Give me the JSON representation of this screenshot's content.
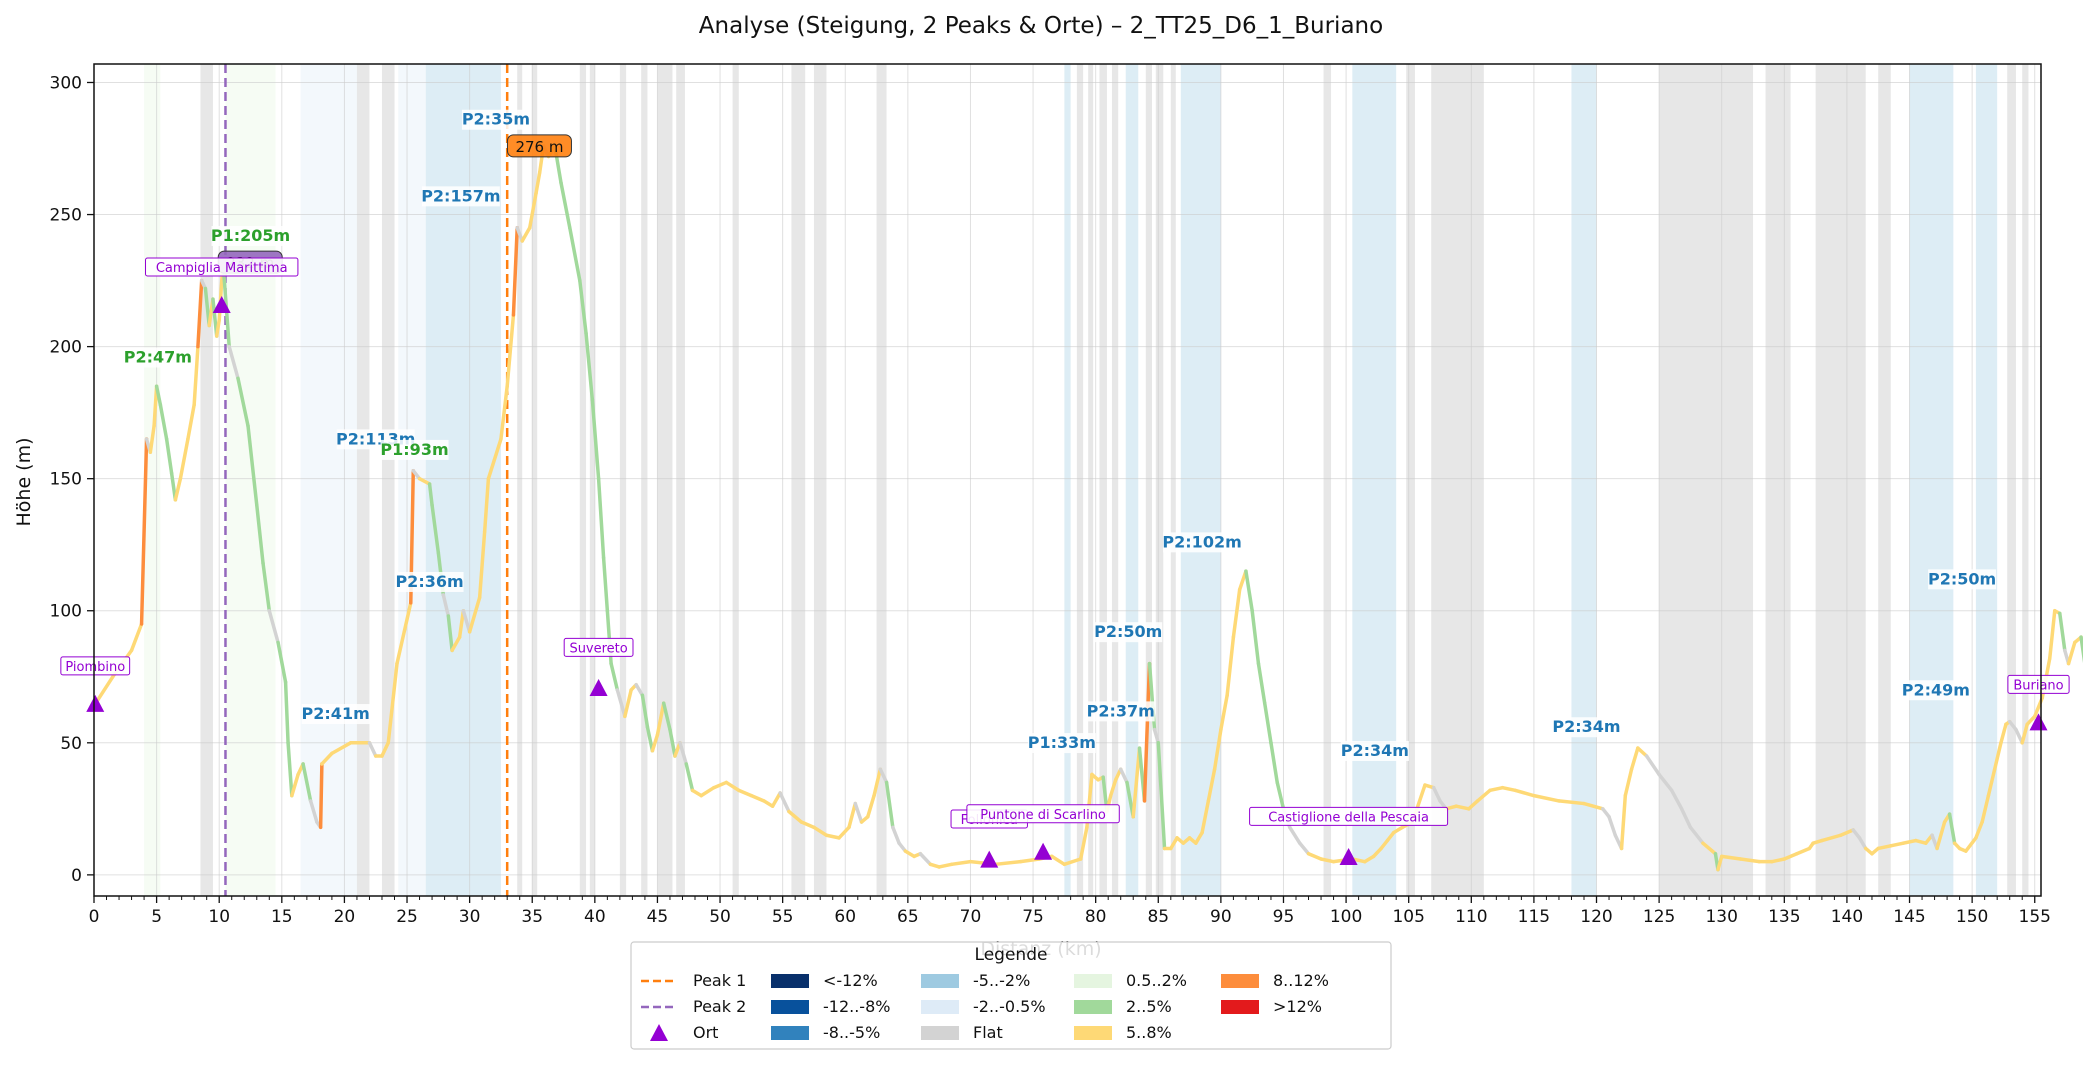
{
  "chart_data": {
    "type": "line",
    "title": "Analyse (Steigung, 2 Peaks & Orte) – 2_TT25_D6_1_Buriano",
    "xlabel": "Distanz (km)",
    "ylabel": "Höhe (m)",
    "xlim": [
      0,
      155.5
    ],
    "ylim": [
      -8,
      307
    ],
    "x_ticks": [
      0,
      5,
      10,
      15,
      20,
      25,
      30,
      35,
      40,
      45,
      50,
      55,
      60,
      65,
      70,
      75,
      80,
      85,
      90,
      95,
      100,
      105,
      110,
      115,
      120,
      125,
      130,
      135,
      140,
      145,
      150,
      155
    ],
    "y_ticks": [
      0,
      50,
      100,
      150,
      200,
      250,
      300
    ],
    "grid": true,
    "legend_position": "bottom-center",
    "colors": {
      "peak1": "#ff7f0e",
      "peak2": "#9467bd",
      "ort": "#9400d3",
      "label_p1": "#2ca02c",
      "label_p2": "#1f77b4",
      "lt_neg12": "#08306b",
      "neg12_neg8": "#08519c",
      "neg8_neg5": "#3182bd",
      "neg5_neg2": "#9ecae1",
      "neg2_neg05": "#deebf7",
      "flat": "#d3d3d3",
      "c05_2": "#e5f5e0",
      "c2_5": "#a1d99b",
      "c5_8": "#fed976",
      "c8_12": "#fd8d3c",
      "gt12": "#e31a1c"
    },
    "profile": [
      [
        0,
        64
      ],
      [
        1.5,
        75
      ],
      [
        3,
        85
      ],
      [
        3.8,
        95
      ],
      [
        4.2,
        165
      ],
      [
        4.5,
        160
      ],
      [
        4.8,
        170
      ],
      [
        5.0,
        185
      ],
      [
        5.3,
        178
      ],
      [
        5.8,
        165
      ],
      [
        6.2,
        152
      ],
      [
        6.5,
        142
      ],
      [
        6.9,
        150
      ],
      [
        7.5,
        165
      ],
      [
        8.0,
        178
      ],
      [
        8.3,
        200
      ],
      [
        8.6,
        225
      ],
      [
        8.9,
        222
      ],
      [
        9.2,
        208
      ],
      [
        9.5,
        218
      ],
      [
        9.8,
        204
      ],
      [
        10.0,
        210
      ],
      [
        10.3,
        232
      ],
      [
        10.8,
        200
      ],
      [
        11.5,
        188
      ],
      [
        12.3,
        170
      ],
      [
        13.0,
        140
      ],
      [
        13.5,
        118
      ],
      [
        14.0,
        100
      ],
      [
        14.7,
        88
      ],
      [
        15.3,
        73
      ],
      [
        15.5,
        50
      ],
      [
        15.8,
        30
      ],
      [
        16.3,
        38
      ],
      [
        16.7,
        42
      ],
      [
        17.3,
        28
      ],
      [
        17.8,
        20
      ],
      [
        18.1,
        18
      ],
      [
        18.2,
        42
      ],
      [
        19.0,
        46
      ],
      [
        20.5,
        50
      ],
      [
        22.0,
        50
      ],
      [
        22.5,
        45
      ],
      [
        23.0,
        45
      ],
      [
        23.5,
        50
      ],
      [
        24.2,
        80
      ],
      [
        25.3,
        103
      ],
      [
        25.5,
        153
      ],
      [
        26.0,
        150
      ],
      [
        26.8,
        148
      ],
      [
        27.0,
        140
      ],
      [
        27.5,
        122
      ],
      [
        27.9,
        106
      ],
      [
        28.3,
        98
      ],
      [
        28.6,
        85
      ],
      [
        29.2,
        90
      ],
      [
        29.5,
        100
      ],
      [
        30.0,
        92
      ],
      [
        30.8,
        105
      ],
      [
        31.2,
        130
      ],
      [
        31.5,
        150
      ],
      [
        32.5,
        165
      ],
      [
        33.0,
        185
      ],
      [
        33.5,
        212
      ],
      [
        33.8,
        245
      ],
      [
        34.2,
        240
      ],
      [
        34.8,
        245
      ],
      [
        35.3,
        258
      ],
      [
        35.6,
        266
      ],
      [
        35.9,
        276
      ],
      [
        36.3,
        272
      ],
      [
        36.8,
        276
      ],
      [
        37.3,
        262
      ],
      [
        38.0,
        245
      ],
      [
        38.8,
        225
      ],
      [
        39.3,
        205
      ],
      [
        39.8,
        180
      ],
      [
        40.3,
        150
      ],
      [
        40.7,
        120
      ],
      [
        41.0,
        100
      ],
      [
        41.3,
        80
      ],
      [
        41.8,
        70
      ],
      [
        42.4,
        60
      ],
      [
        42.9,
        70
      ],
      [
        43.3,
        72
      ],
      [
        43.8,
        68
      ],
      [
        44.2,
        56
      ],
      [
        44.6,
        47
      ],
      [
        45.0,
        53
      ],
      [
        45.5,
        65
      ],
      [
        46.0,
        55
      ],
      [
        46.4,
        45
      ],
      [
        46.8,
        50
      ],
      [
        47.3,
        42
      ],
      [
        47.8,
        32
      ],
      [
        48.5,
        30
      ],
      [
        49.5,
        33
      ],
      [
        50.5,
        35
      ],
      [
        51.5,
        32
      ],
      [
        52.5,
        30
      ],
      [
        53.5,
        28
      ],
      [
        54.2,
        26
      ],
      [
        54.8,
        31
      ],
      [
        55.5,
        24
      ],
      [
        56.5,
        20
      ],
      [
        57.5,
        18
      ],
      [
        58.5,
        15
      ],
      [
        59.5,
        14
      ],
      [
        60.3,
        18
      ],
      [
        60.8,
        27
      ],
      [
        61.3,
        20
      ],
      [
        61.8,
        22
      ],
      [
        62.3,
        30
      ],
      [
        62.8,
        40
      ],
      [
        63.3,
        35
      ],
      [
        63.8,
        18
      ],
      [
        64.3,
        12
      ],
      [
        64.8,
        9
      ],
      [
        65.5,
        7
      ],
      [
        66.0,
        8
      ],
      [
        66.8,
        4
      ],
      [
        67.5,
        3
      ],
      [
        68.5,
        4
      ],
      [
        70.0,
        5
      ],
      [
        72.0,
        4
      ],
      [
        74.0,
        5
      ],
      [
        75.5,
        6
      ],
      [
        76.5,
        7
      ],
      [
        77.5,
        4
      ],
      [
        78.8,
        6
      ],
      [
        79.3,
        18
      ],
      [
        79.7,
        38
      ],
      [
        80.2,
        36
      ],
      [
        80.6,
        37
      ],
      [
        80.9,
        24
      ],
      [
        81.2,
        30
      ],
      [
        81.6,
        36
      ],
      [
        82.0,
        40
      ],
      [
        82.5,
        35
      ],
      [
        83.0,
        22
      ],
      [
        83.5,
        48
      ],
      [
        83.9,
        28
      ],
      [
        84.3,
        80
      ],
      [
        84.7,
        55
      ],
      [
        85.0,
        50
      ],
      [
        85.5,
        10
      ],
      [
        86.0,
        10
      ],
      [
        86.5,
        14
      ],
      [
        87.0,
        12
      ],
      [
        87.5,
        14
      ],
      [
        88.0,
        12
      ],
      [
        88.5,
        16
      ],
      [
        89.0,
        28
      ],
      [
        89.5,
        40
      ],
      [
        90.0,
        55
      ],
      [
        90.5,
        68
      ],
      [
        91.0,
        90
      ],
      [
        91.5,
        108
      ],
      [
        92.0,
        115
      ],
      [
        92.5,
        100
      ],
      [
        93.0,
        80
      ],
      [
        93.5,
        65
      ],
      [
        94.0,
        50
      ],
      [
        94.5,
        35
      ],
      [
        95.0,
        25
      ],
      [
        95.5,
        18
      ],
      [
        96.3,
        12
      ],
      [
        97.0,
        8
      ],
      [
        98.0,
        6
      ],
      [
        99.0,
        5
      ],
      [
        100.5,
        6
      ],
      [
        101.5,
        5
      ],
      [
        102.2,
        7
      ],
      [
        102.8,
        10
      ],
      [
        103.3,
        13
      ],
      [
        103.8,
        16
      ],
      [
        104.5,
        18
      ],
      [
        105.3,
        20
      ],
      [
        106.3,
        34
      ],
      [
        107.0,
        33
      ],
      [
        107.5,
        28
      ],
      [
        108.0,
        25
      ],
      [
        108.8,
        26
      ],
      [
        109.8,
        25
      ],
      [
        110.5,
        28
      ],
      [
        111.5,
        32
      ],
      [
        112.5,
        33
      ],
      [
        113.5,
        32
      ],
      [
        115.0,
        30
      ],
      [
        117.0,
        28
      ],
      [
        119.0,
        27
      ],
      [
        120.5,
        25
      ],
      [
        121.0,
        22
      ],
      [
        121.5,
        15
      ],
      [
        122.0,
        10
      ],
      [
        122.3,
        30
      ],
      [
        122.8,
        40
      ],
      [
        123.3,
        48
      ],
      [
        124.0,
        45
      ],
      [
        125.0,
        38
      ],
      [
        126.0,
        32
      ],
      [
        126.8,
        25
      ],
      [
        127.5,
        18
      ],
      [
        128.5,
        12
      ],
      [
        129.5,
        8
      ],
      [
        129.7,
        2
      ],
      [
        130.0,
        7
      ],
      [
        131.5,
        6
      ],
      [
        133.0,
        5
      ],
      [
        134.0,
        5
      ],
      [
        135.0,
        6
      ],
      [
        136.0,
        8
      ],
      [
        137.0,
        10
      ],
      [
        137.3,
        12
      ],
      [
        138.0,
        13
      ],
      [
        139.5,
        15
      ],
      [
        140.5,
        17
      ],
      [
        141.0,
        14
      ],
      [
        141.5,
        10
      ],
      [
        142.0,
        8
      ],
      [
        142.5,
        10
      ],
      [
        143.5,
        11
      ],
      [
        144.5,
        12
      ],
      [
        145.5,
        13
      ],
      [
        146.3,
        12
      ],
      [
        146.8,
        15
      ],
      [
        147.2,
        10
      ],
      [
        147.8,
        20
      ],
      [
        148.2,
        23
      ],
      [
        148.6,
        12
      ],
      [
        149.0,
        10
      ],
      [
        149.5,
        9
      ],
      [
        150.3,
        14
      ],
      [
        150.8,
        20
      ],
      [
        151.3,
        30
      ],
      [
        151.8,
        40
      ],
      [
        152.3,
        50
      ],
      [
        152.7,
        57
      ],
      [
        153.0,
        58
      ],
      [
        153.5,
        55
      ],
      [
        154.0,
        50
      ],
      [
        154.4,
        57
      ],
      [
        155.0,
        60
      ],
      [
        155.6,
        67
      ],
      [
        156.2,
        82
      ],
      [
        156.6,
        100
      ],
      [
        157.0,
        99
      ],
      [
        157.4,
        85
      ],
      [
        157.7,
        80
      ],
      [
        158.2,
        88
      ],
      [
        158.7,
        90
      ],
      [
        159.0,
        80
      ],
      [
        159.4,
        70
      ],
      [
        160.0,
        57
      ]
    ],
    "bands": [
      [
        4,
        5.3,
        "c05_2"
      ],
      [
        8.5,
        9.5,
        "flat"
      ],
      [
        10.5,
        14.5,
        "c05_2"
      ],
      [
        16.5,
        21,
        "neg2_neg05"
      ],
      [
        21,
        22,
        "flat"
      ],
      [
        23,
        24,
        "flat"
      ],
      [
        24.3,
        26.5,
        "neg2_neg05"
      ],
      [
        26.5,
        32.5,
        "neg5_neg2"
      ],
      [
        33.8,
        34.2,
        "flat"
      ],
      [
        35,
        35.4,
        "flat"
      ],
      [
        38.8,
        39.3,
        "flat"
      ],
      [
        39.6,
        40,
        "flat"
      ],
      [
        42,
        42.5,
        "flat"
      ],
      [
        43.7,
        44.2,
        "flat"
      ],
      [
        45,
        46.2,
        "flat"
      ],
      [
        46.5,
        47.2,
        "flat"
      ],
      [
        51,
        51.5,
        "flat"
      ],
      [
        55.7,
        56.8,
        "flat"
      ],
      [
        57.5,
        58.5,
        "flat"
      ],
      [
        62.5,
        63.3,
        "flat"
      ],
      [
        77.5,
        78,
        "neg5_neg2"
      ],
      [
        78.5,
        79,
        "flat"
      ],
      [
        79.4,
        79.8,
        "flat"
      ],
      [
        80.3,
        80.9,
        "flat"
      ],
      [
        81.3,
        81.8,
        "flat"
      ],
      [
        82.4,
        83.4,
        "neg5_neg2"
      ],
      [
        84,
        84.5,
        "flat"
      ],
      [
        84.8,
        85.4,
        "flat"
      ],
      [
        86,
        86.4,
        "flat"
      ],
      [
        86.8,
        90,
        "neg5_neg2"
      ],
      [
        98.2,
        98.8,
        "flat"
      ],
      [
        100.5,
        104,
        "neg5_neg2"
      ],
      [
        104.8,
        105.5,
        "flat"
      ],
      [
        106.8,
        107.5,
        "flat"
      ],
      [
        107.5,
        111,
        "flat"
      ],
      [
        118,
        120,
        "neg5_neg2"
      ],
      [
        125,
        132.5,
        "flat"
      ],
      [
        133.5,
        135.5,
        "flat"
      ],
      [
        137.5,
        141.5,
        "flat"
      ],
      [
        142.5,
        143.5,
        "flat"
      ],
      [
        145,
        148.5,
        "neg5_neg2"
      ],
      [
        150.3,
        152,
        "neg5_neg2"
      ],
      [
        152.8,
        153.5,
        "flat"
      ],
      [
        154,
        154.5,
        "flat"
      ]
    ],
    "peak_lines": [
      {
        "x": 33,
        "style": "peak1"
      },
      {
        "x": 10.5,
        "style": "peak2"
      }
    ],
    "peak_badges": [
      {
        "x": 33.5,
        "y": 276,
        "text": "276 m",
        "style": "peak1"
      },
      {
        "x": 10.4,
        "y": 232,
        "text": "232 m",
        "style": "peak2"
      }
    ],
    "climb_labels": [
      {
        "x": 5.1,
        "y": 194,
        "text": "P2:47m",
        "style": "label_p2_green"
      },
      {
        "x": 12.5,
        "y": 240,
        "text": "P1:205m",
        "style": "label_p1"
      },
      {
        "x": 22.5,
        "y": 163,
        "text": "P2:113m",
        "style": "label_p2"
      },
      {
        "x": 25.6,
        "y": 159,
        "text": "P1:93m",
        "style": "label_p1"
      },
      {
        "x": 26.8,
        "y": 109,
        "text": "P2:36m",
        "style": "label_p2"
      },
      {
        "x": 19.3,
        "y": 59,
        "text": "P2:41m",
        "style": "label_p2"
      },
      {
        "x": 29.3,
        "y": 255,
        "text": "P2:157m",
        "style": "label_p2"
      },
      {
        "x": 32.1,
        "y": 284,
        "text": "P2:35m",
        "style": "label_p2"
      },
      {
        "x": 77.3,
        "y": 48,
        "text": "P1:33m",
        "style": "label_p2"
      },
      {
        "x": 82.0,
        "y": 60,
        "text": "P2:37m",
        "style": "label_p2"
      },
      {
        "x": 82.6,
        "y": 90,
        "text": "P2:50m",
        "style": "label_p2"
      },
      {
        "x": 88.5,
        "y": 124,
        "text": "P2:102m",
        "style": "label_p2"
      },
      {
        "x": 102.3,
        "y": 45,
        "text": "P2:34m",
        "style": "label_p2"
      },
      {
        "x": 119.2,
        "y": 54,
        "text": "P2:34m",
        "style": "label_p2"
      },
      {
        "x": 147.1,
        "y": 68,
        "text": "P2:49m",
        "style": "label_p2"
      },
      {
        "x": 149.2,
        "y": 110,
        "text": "P2:50m",
        "style": "label_p2"
      }
    ],
    "places": [
      {
        "name": "Piombino",
        "x": 0.1,
        "y": 64,
        "ly": 78
      },
      {
        "name": "Campiglia Marittima",
        "x": 10.2,
        "y": 215,
        "ly": 229
      },
      {
        "name": "Suvereto",
        "x": 40.3,
        "y": 70,
        "ly": 85
      },
      {
        "name": "Follonica",
        "x": 71.5,
        "y": 5,
        "ly": 20
      },
      {
        "name": "Puntone di Scarlino",
        "x": 75.8,
        "y": 8,
        "ly": 22
      },
      {
        "name": "Castiglione della Pescaia",
        "x": 100.2,
        "y": 6,
        "ly": 21
      },
      {
        "name": "Buriano",
        "x": 155.3,
        "y": 57,
        "ly": 71
      }
    ],
    "legend": {
      "title": "Legende",
      "entries": [
        {
          "label": "Peak 1",
          "kind": "dash",
          "color": "peak1"
        },
        {
          "label": "Peak 2",
          "kind": "dash",
          "color": "peak2"
        },
        {
          "label": "Ort",
          "kind": "triangle",
          "color": "ort"
        },
        {
          "label": "<-12%",
          "kind": "box",
          "color": "lt_neg12"
        },
        {
          "label": "-12..-8%",
          "kind": "box",
          "color": "neg12_neg8"
        },
        {
          "label": "-8..-5%",
          "kind": "box",
          "color": "neg8_neg5"
        },
        {
          "label": "-5..-2%",
          "kind": "box",
          "color": "neg5_neg2"
        },
        {
          "label": "-2..-0.5%",
          "kind": "box",
          "color": "neg2_neg05"
        },
        {
          "label": "Flat",
          "kind": "box",
          "color": "flat"
        },
        {
          "label": "0.5..2%",
          "kind": "box",
          "color": "c05_2"
        },
        {
          "label": "2..5%",
          "kind": "box",
          "color": "c2_5"
        },
        {
          "label": "5..8%",
          "kind": "box",
          "color": "c5_8"
        },
        {
          "label": "8..12%",
          "kind": "box",
          "color": "c8_12"
        },
        {
          "label": ">12%",
          "kind": "box",
          "color": "gt12"
        }
      ]
    }
  }
}
